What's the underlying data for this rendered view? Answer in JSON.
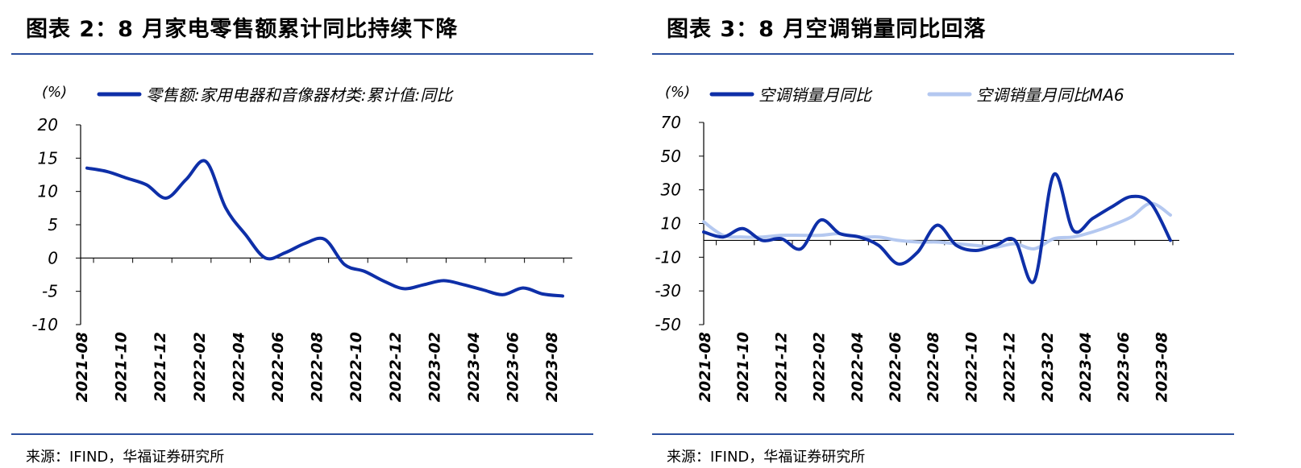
{
  "charts": [
    {
      "title": "图表 2：8 月家电零售额累计同比持续下降",
      "source": "来源：IFIND，华福证券研究所"
    },
    {
      "title": "图表 3：8 月空调销量同比回落",
      "source": "来源：IFIND，华福证券研究所"
    }
  ],
  "colors": {
    "rule": "#2b4f9e",
    "series_dark": "#0e2fa8",
    "series_light": "#b4c8f0"
  },
  "chart_data": [
    {
      "type": "line",
      "unit_label": "(%)",
      "ylim": [
        -10,
        20
      ],
      "yticks": [
        20,
        15,
        10,
        5,
        0,
        -5,
        -10
      ],
      "x": [
        "2021-08",
        "2021-09",
        "2021-10",
        "2021-11",
        "2021-12",
        "2022-01",
        "2022-02",
        "2022-03",
        "2022-04",
        "2022-05",
        "2022-06",
        "2022-07",
        "2022-08",
        "2022-09",
        "2022-10",
        "2022-11",
        "2022-12",
        "2023-01",
        "2023-02",
        "2023-03",
        "2023-04",
        "2023-05",
        "2023-06",
        "2023-07",
        "2023-08"
      ],
      "xtick_labels": [
        "2021-08",
        "2021-10",
        "2021-12",
        "2022-02",
        "2022-04",
        "2022-06",
        "2022-08",
        "2022-10",
        "2022-12",
        "2023-02",
        "2023-04",
        "2023-06",
        "2023-08"
      ],
      "series": [
        {
          "name": "零售额:家用电器和音像器材类:累计值:同比",
          "color": "#0e2fa8",
          "values": [
            13.5,
            13.0,
            12.0,
            11.0,
            9.0,
            11.8,
            14.5,
            7.5,
            3.5,
            0.0,
            0.8,
            2.2,
            2.8,
            -1.0,
            -2.0,
            -3.5,
            -4.6,
            -4.0,
            -3.4,
            -4.0,
            -4.8,
            -5.5,
            -4.5,
            -5.4,
            -5.7
          ]
        }
      ]
    },
    {
      "type": "line",
      "unit_label": "(%)",
      "ylim": [
        -50,
        70
      ],
      "yticks": [
        70,
        50,
        30,
        10,
        -10,
        -30,
        -50
      ],
      "x": [
        "2021-08",
        "2021-09",
        "2021-10",
        "2021-11",
        "2021-12",
        "2022-01",
        "2022-02",
        "2022-03",
        "2022-04",
        "2022-05",
        "2022-06",
        "2022-07",
        "2022-08",
        "2022-09",
        "2022-10",
        "2022-11",
        "2022-12",
        "2023-01",
        "2023-02",
        "2023-03",
        "2023-04",
        "2023-05",
        "2023-06",
        "2023-07",
        "2023-08"
      ],
      "xtick_labels": [
        "2021-08",
        "2021-10",
        "2021-12",
        "2022-02",
        "2022-04",
        "2022-06",
        "2022-08",
        "2022-10",
        "2022-12",
        "2023-02",
        "2023-04",
        "2023-06",
        "2023-08"
      ],
      "series": [
        {
          "name": "空调销量月同比",
          "color": "#0e2fa8",
          "values": [
            5,
            2,
            7,
            0,
            1,
            -5,
            12,
            4,
            2,
            -3,
            -14,
            -7,
            9,
            -3,
            -6,
            -3,
            0,
            -24,
            39,
            6,
            13,
            20,
            26,
            22,
            0
          ]
        },
        {
          "name": "空调销量月同比MA6",
          "color": "#b4c8f0",
          "values": [
            11,
            3,
            2,
            2,
            3,
            3,
            3,
            4,
            2,
            2,
            0,
            -1,
            -1,
            -2,
            -3,
            -4,
            -2,
            -5,
            1,
            2,
            5,
            9,
            14,
            22,
            15
          ]
        }
      ]
    }
  ]
}
